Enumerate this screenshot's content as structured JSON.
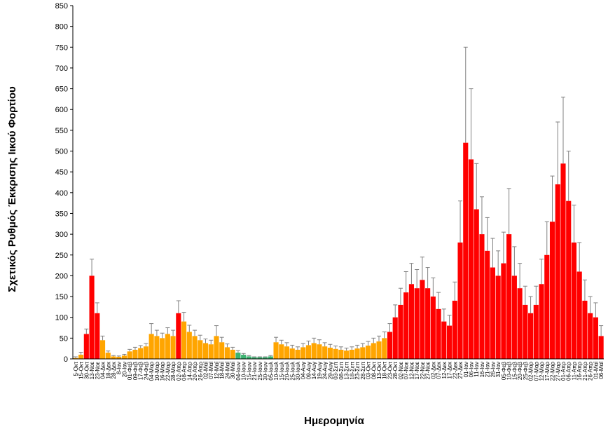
{
  "chart_data": {
    "type": "bar",
    "title": "",
    "ylabel": "Σχετικός Ρυθμός Έκκρισης Ιικού Φορτίου",
    "xlabel": "Ημερομηνία",
    "ylim": [
      0,
      850
    ],
    "yticks": [
      0,
      50,
      100,
      150,
      200,
      250,
      300,
      350,
      400,
      450,
      500,
      550,
      600,
      650,
      700,
      750,
      800,
      850
    ],
    "grid": false,
    "legend": "none",
    "error_bars": true,
    "colors": {
      "high": "#ff0000",
      "medium": "#ffa500",
      "low": "#3cb371",
      "error_bar": "#808080",
      "axis": "#000000"
    },
    "categories": [
      "5-Οκτ",
      "15-Οκτ",
      "30-Οκτ",
      "13-Νοε",
      "23-Νοε",
      "04-Δεκ",
      "18-Δεκ",
      "28-Δεκ",
      "8-Ιαν",
      "20-Ιαν",
      "01-Φεβ",
      "09-Φεβ",
      "17-Φεβ",
      "24-Φεβ",
      "04-Μαρ",
      "10-Μαρ",
      "16-Μαρ",
      "22-Μαρ",
      "28-Μαρ",
      "02-Απρ",
      "08-Απρ",
      "14-Απρ",
      "20-Απρ",
      "26-Απρ",
      "02-Μαϊ",
      "07-Μαϊ",
      "12-Μαϊ",
      "18-Μαϊ",
      "24-Μαϊ",
      "30-Μαϊ",
      "04-Ιουν",
      "10-Ιουν",
      "15-Ιουν",
      "21-Ιουν",
      "25-Ιουν",
      "30-Ιουν",
      "05-Ιουλ",
      "10-Ιουλ",
      "15-Ιουλ",
      "20-Ιουλ",
      "25-Ιουλ",
      "30-Ιουλ",
      "04-Αυγ",
      "09-Αυγ",
      "14-Αυγ",
      "19-Αυγ",
      "24-Αυγ",
      "29-Αυγ",
      "03-Σεπ",
      "08-Σεπ",
      "13-Σεπ",
      "18-Σεπ",
      "23-Σεπ",
      "28-Σεπ",
      "03-Οκτ",
      "08-Οκτ",
      "13-Οκτ",
      "18-Οκτ",
      "23-Οκτ",
      "28-Οκτ",
      "02-Νοε",
      "07-Νοε",
      "12-Νοε",
      "17-Νοε",
      "22-Νοε",
      "27-Νοε",
      "02-Δεκ",
      "07-Δεκ",
      "12-Δεκ",
      "17-Δεκ",
      "22-Δεκ",
      "27-Δεκ",
      "01-Ιαν",
      "06-Ιαν",
      "11-Ιαν",
      "16-Ιαν",
      "21-Ιαν",
      "26-Ιαν",
      "31-Ιαν",
      "05-Φεβ",
      "10-Φεβ",
      "15-Φεβ",
      "20-Φεβ",
      "25-Φεβ",
      "02-Μαρ",
      "07-Μαρ",
      "12-Μαρ",
      "17-Μαρ",
      "22-Μαρ",
      "27-Μαρ",
      "01-Απρ",
      "06-Απρ",
      "11-Απρ",
      "16-Απρ",
      "21-Απρ",
      "26-Απρ",
      "01-Μαϊ",
      "06-Μαϊ"
    ],
    "series": [
      {
        "values": [
          2,
          10,
          60,
          200,
          110,
          45,
          15,
          6,
          5,
          8,
          18,
          22,
          26,
          30,
          60,
          55,
          50,
          60,
          55,
          110,
          90,
          65,
          55,
          45,
          38,
          35,
          55,
          40,
          28,
          22,
          15,
          10,
          6,
          4,
          4,
          4,
          6,
          40,
          35,
          30,
          25,
          22,
          28,
          33,
          38,
          35,
          30,
          27,
          24,
          22,
          20,
          22,
          25,
          28,
          32,
          38,
          42,
          50,
          65,
          100,
          130,
          160,
          180,
          170,
          190,
          170,
          150,
          120,
          90,
          80,
          140,
          280,
          520,
          480,
          360,
          300,
          260,
          220,
          200,
          230,
          300,
          200,
          170,
          130,
          110,
          130,
          180,
          250,
          330,
          420,
          470,
          380,
          280,
          210,
          140,
          110,
          100,
          55
        ],
        "error": [
          3,
          6,
          12,
          40,
          25,
          10,
          4,
          2,
          2,
          3,
          5,
          6,
          6,
          7,
          25,
          14,
          12,
          15,
          14,
          30,
          22,
          16,
          14,
          12,
          10,
          10,
          25,
          12,
          8,
          6,
          5,
          3,
          2,
          1,
          1,
          1,
          2,
          12,
          10,
          9,
          8,
          7,
          9,
          10,
          12,
          11,
          9,
          8,
          7,
          7,
          6,
          7,
          8,
          9,
          10,
          12,
          13,
          15,
          20,
          30,
          40,
          50,
          50,
          45,
          55,
          50,
          45,
          40,
          30,
          25,
          45,
          100,
          230,
          170,
          110,
          90,
          80,
          70,
          60,
          75,
          110,
          70,
          60,
          45,
          40,
          45,
          60,
          80,
          110,
          150,
          160,
          120,
          90,
          70,
          50,
          40,
          35,
          25
        ],
        "level": [
          "m",
          "m",
          "r",
          "r",
          "r",
          "m",
          "m",
          "m",
          "m",
          "m",
          "m",
          "m",
          "m",
          "m",
          "m",
          "m",
          "m",
          "m",
          "m",
          "r",
          "m",
          "m",
          "m",
          "m",
          "m",
          "m",
          "m",
          "m",
          "m",
          "m",
          "g",
          "g",
          "g",
          "g",
          "g",
          "g",
          "g",
          "m",
          "m",
          "m",
          "m",
          "m",
          "m",
          "m",
          "m",
          "m",
          "m",
          "m",
          "m",
          "m",
          "m",
          "m",
          "m",
          "m",
          "m",
          "m",
          "m",
          "m",
          "r",
          "r",
          "r",
          "r",
          "r",
          "r",
          "r",
          "r",
          "r",
          "r",
          "r",
          "r",
          "r",
          "r",
          "r",
          "r",
          "r",
          "r",
          "r",
          "r",
          "r",
          "r",
          "r",
          "r",
          "r",
          "r",
          "r",
          "r",
          "r",
          "r",
          "r",
          "r",
          "r",
          "r",
          "r",
          "r",
          "r",
          "r",
          "r",
          "r"
        ]
      }
    ]
  }
}
